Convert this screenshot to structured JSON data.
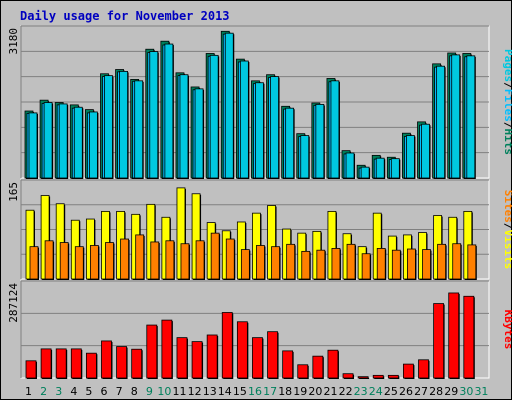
{
  "chart_data": [
    {
      "type": "bar",
      "title": "Daily usage for November 2013",
      "categories": [
        "1",
        "2",
        "3",
        "4",
        "5",
        "6",
        "7",
        "8",
        "9",
        "10",
        "11",
        "12",
        "13",
        "14",
        "15",
        "16",
        "17",
        "18",
        "19",
        "20",
        "21",
        "22",
        "23",
        "24",
        "25",
        "26",
        "27",
        "28",
        "29",
        "30",
        "31"
      ],
      "weekend_days": [
        "2",
        "3",
        "9",
        "10",
        "16",
        "17",
        "23",
        "24",
        "30",
        "31"
      ],
      "ymax_label": "3180",
      "ylim": [
        0,
        3180
      ],
      "right_label": [
        "Pages",
        "Files",
        "Hits"
      ],
      "series": [
        {
          "name": "Hits",
          "color": "#00805c",
          "values": [
            1420,
            1650,
            1600,
            1550,
            1450,
            2210,
            2300,
            2090,
            2730,
            2900,
            2230,
            1930,
            2640,
            3110,
            2520,
            2060,
            2190,
            1520,
            940,
            1590,
            2110,
            580,
            270,
            480,
            440,
            950,
            1190,
            2420,
            2650,
            2640,
            0
          ]
        },
        {
          "name": "Files",
          "color": "#00bfff",
          "values": [
            1370,
            1580,
            1550,
            1480,
            1380,
            2150,
            2250,
            2050,
            2660,
            2820,
            2170,
            1870,
            2580,
            3050,
            2460,
            2000,
            2130,
            1460,
            880,
            1540,
            2040,
            510,
            210,
            400,
            390,
            880,
            1120,
            2350,
            2590,
            2570,
            0
          ]
        },
        {
          "name": "Pages",
          "color": "#00c8e0",
          "values": [
            1380,
            1600,
            1570,
            1500,
            1400,
            2170,
            2260,
            2060,
            2680,
            2840,
            2190,
            1890,
            2600,
            3070,
            2480,
            2020,
            2150,
            1480,
            900,
            1560,
            2060,
            530,
            230,
            420,
            410,
            900,
            1140,
            2370,
            2610,
            2590,
            0
          ]
        }
      ]
    },
    {
      "type": "bar",
      "ymax_label": "165",
      "ylim": [
        0,
        165
      ],
      "right_label": [
        "Sites",
        "Visits"
      ],
      "series": [
        {
          "name": "Visits",
          "color": "#ffff00",
          "values": [
            117,
            142,
            128,
            100,
            102,
            115,
            115,
            110,
            127,
            105,
            155,
            145,
            96,
            82,
            97,
            112,
            125,
            85,
            78,
            81,
            115,
            77,
            55,
            112,
            73,
            75,
            79,
            108,
            105,
            115,
            0
          ]
        },
        {
          "name": "Sites",
          "color": "#ff8000",
          "values": [
            55,
            65,
            62,
            55,
            57,
            62,
            68,
            75,
            63,
            65,
            60,
            65,
            78,
            68,
            50,
            57,
            55,
            59,
            47,
            49,
            52,
            59,
            43,
            52,
            49,
            51,
            50,
            59,
            60,
            58,
            0
          ]
        }
      ]
    },
    {
      "type": "bar",
      "ymax_label": "287124",
      "ylim": [
        0,
        287124
      ],
      "right_label": [
        "KBytes"
      ],
      "series": [
        {
          "name": "KBytes",
          "color": "#ff0000",
          "values": [
            52000,
            88000,
            88000,
            88000,
            75000,
            112000,
            95000,
            87000,
            160000,
            175000,
            122000,
            110000,
            130000,
            198000,
            170000,
            122000,
            140000,
            82000,
            40000,
            66000,
            84000,
            13000,
            4000,
            8000,
            8000,
            42000,
            55000,
            225000,
            257000,
            247000,
            0
          ]
        }
      ]
    }
  ],
  "colors": {
    "background": "#c0c0c0",
    "title": "#0000c0",
    "weekday_label": "#000000",
    "weekend_label": "#00805c",
    "grid": "#808080",
    "bar_shadow": "#000000"
  }
}
